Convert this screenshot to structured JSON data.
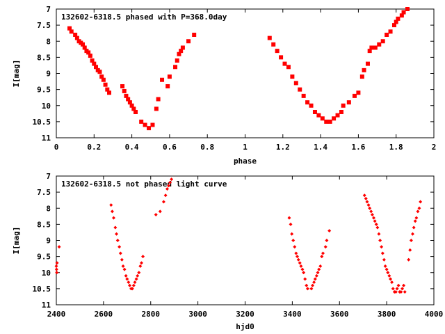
{
  "chart_data": [
    {
      "type": "scatter",
      "title": "132602-6318.5 phased with P=368.0day",
      "xlabel": "phase",
      "ylabel": "I[mag]",
      "xlim": [
        0,
        2
      ],
      "ylim": [
        11,
        7
      ],
      "y_inverted": true,
      "grid": false,
      "xticks": [
        "0",
        "0.2",
        "0.4",
        "0.6",
        "0.8",
        "1",
        "1.2",
        "1.4",
        "1.6",
        "1.8",
        "2"
      ],
      "yticks": [
        "7",
        "7.5",
        "8",
        "8.5",
        "9",
        "9.5",
        "10",
        "10.5",
        "11"
      ],
      "marker_color": "#ff0000",
      "marker": "filled-square",
      "series": [
        {
          "x": [
            0.07,
            0.08,
            0.1,
            0.11,
            0.12,
            0.13,
            0.14,
            0.15,
            0.16,
            0.17,
            0.18,
            0.19,
            0.2,
            0.21,
            0.22,
            0.23,
            0.24,
            0.25,
            0.26,
            0.27,
            0.28,
            0.35,
            0.36,
            0.37,
            0.38,
            0.39,
            0.4,
            0.41,
            0.42,
            0.45,
            0.47,
            0.49,
            0.51,
            0.53,
            0.54,
            0.56,
            0.59,
            0.6,
            0.63,
            0.64,
            0.65,
            0.66,
            0.67,
            0.7,
            0.73,
            1.13,
            1.15,
            1.17,
            1.19,
            1.21,
            1.23,
            1.25,
            1.27,
            1.29,
            1.31,
            1.33,
            1.35,
            1.37,
            1.39,
            1.41,
            1.43,
            1.45,
            1.47,
            1.49,
            1.51,
            1.52,
            1.55,
            1.58,
            1.6,
            1.62,
            1.63,
            1.65,
            1.66,
            1.67,
            1.69,
            1.71,
            1.73,
            1.75,
            1.77,
            1.79,
            1.8,
            1.81,
            1.83,
            1.84,
            1.86
          ],
          "y": [
            7.6,
            7.7,
            7.8,
            7.9,
            8.0,
            8.05,
            8.1,
            8.2,
            8.3,
            8.35,
            8.45,
            8.6,
            8.7,
            8.8,
            8.9,
            8.95,
            9.1,
            9.2,
            9.35,
            9.5,
            9.6,
            9.4,
            9.55,
            9.7,
            9.8,
            9.9,
            10.0,
            10.1,
            10.2,
            10.5,
            10.6,
            10.7,
            10.6,
            10.1,
            9.8,
            9.2,
            9.4,
            9.1,
            8.8,
            8.6,
            8.4,
            8.3,
            8.2,
            8.0,
            7.8,
            7.9,
            8.1,
            8.3,
            8.5,
            8.7,
            8.8,
            9.1,
            9.3,
            9.5,
            9.7,
            9.9,
            10.0,
            10.2,
            10.3,
            10.4,
            10.5,
            10.5,
            10.4,
            10.3,
            10.2,
            10.0,
            9.9,
            9.7,
            9.6,
            9.1,
            8.9,
            8.7,
            8.3,
            8.2,
            8.2,
            8.1,
            8.0,
            7.8,
            7.7,
            7.5,
            7.4,
            7.3,
            7.2,
            7.1,
            7.0
          ]
        }
      ]
    },
    {
      "type": "scatter",
      "title": "132602-6318.5 not phased light curve",
      "xlabel": "hjd0",
      "ylabel": "I[mag]",
      "xlim": [
        2400,
        4000
      ],
      "ylim": [
        11,
        7
      ],
      "y_inverted": true,
      "grid": false,
      "xticks": [
        "2400",
        "2600",
        "2800",
        "3000",
        "3200",
        "3400",
        "3600",
        "3800",
        "4000"
      ],
      "yticks": [
        "7",
        "7.5",
        "8",
        "8.5",
        "9",
        "9.5",
        "10",
        "10.5",
        "11"
      ],
      "marker_color": "#ff0000",
      "marker": "small-diamond",
      "series": [
        {
          "x": [
            2400,
            2401,
            2402,
            2403,
            2412,
            2632,
            2637,
            2643,
            2650,
            2655,
            2660,
            2667,
            2672,
            2678,
            2683,
            2689,
            2695,
            2700,
            2706,
            2711,
            2717,
            2722,
            2728,
            2733,
            2739,
            2744,
            2750,
            2756,
            2761,
            2767,
            2822,
            2840,
            2855,
            2863,
            2870,
            2876,
            2882,
            2888,
            3387,
            3393,
            3398,
            3404,
            3410,
            3416,
            3421,
            3426,
            3432,
            3437,
            3443,
            3448,
            3454,
            3460,
            3465,
            3481,
            3486,
            3492,
            3497,
            3503,
            3508,
            3513,
            3519,
            3525,
            3530,
            3541,
            3546,
            3557,
            3706,
            3712,
            3717,
            3723,
            3728,
            3734,
            3739,
            3745,
            3750,
            3756,
            3761,
            3767,
            3772,
            3778,
            3783,
            3789,
            3794,
            3800,
            3805,
            3811,
            3816,
            3822,
            3827,
            3833,
            3839,
            3844,
            3850,
            3855,
            3861,
            3866,
            3872,
            3877,
            3893,
            3899,
            3904,
            3910,
            3915,
            3921,
            3926,
            3932,
            3938,
            3943
          ],
          "y": [
            9.8,
            9.9,
            10.0,
            9.7,
            9.2,
            7.9,
            8.1,
            8.3,
            8.6,
            8.8,
            9.0,
            9.2,
            9.4,
            9.6,
            9.8,
            9.9,
            10.1,
            10.2,
            10.3,
            10.4,
            10.5,
            10.5,
            10.4,
            10.3,
            10.2,
            10.1,
            10.0,
            9.8,
            9.7,
            9.5,
            8.2,
            8.1,
            7.8,
            7.6,
            7.4,
            7.3,
            7.2,
            7.1,
            8.3,
            8.5,
            8.8,
            9.0,
            9.2,
            9.4,
            9.5,
            9.6,
            9.7,
            9.8,
            9.9,
            10.0,
            10.2,
            10.4,
            10.5,
            10.5,
            10.4,
            10.3,
            10.2,
            10.1,
            10.0,
            9.9,
            9.8,
            9.5,
            9.4,
            9.2,
            9.0,
            8.7,
            7.6,
            7.7,
            7.8,
            7.9,
            8.0,
            8.1,
            8.2,
            8.3,
            8.4,
            8.5,
            8.6,
            8.8,
            9.0,
            9.2,
            9.4,
            9.6,
            9.8,
            9.9,
            10.0,
            10.1,
            10.2,
            10.3,
            10.5,
            10.6,
            10.6,
            10.5,
            10.4,
            10.6,
            10.6,
            10.5,
            10.4,
            10.6,
            9.6,
            9.3,
            9.0,
            8.8,
            8.6,
            8.4,
            8.3,
            8.1,
            8.0,
            7.8
          ]
        }
      ]
    }
  ]
}
